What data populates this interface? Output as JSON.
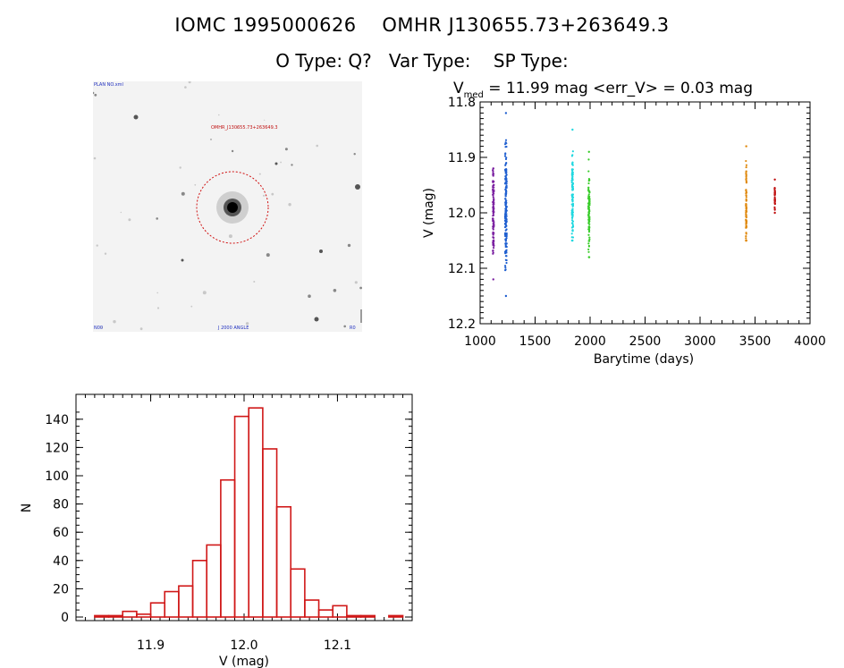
{
  "header": {
    "title": "IOMC 1995000626    OMHR J130655.73+263649.3",
    "subtitle": "O Type: Q?   Var Type:    SP Type:"
  },
  "image_panel": {
    "object_label": "OMHR_J130655.73+263649.3",
    "top_left_label": "PLAN NO.xml",
    "bottom_center_label": "J 2000 ANGLE",
    "bottom_left_label": "N00",
    "bottom_right_label": "R0"
  },
  "lightcurve": {
    "title_prefix": "V",
    "title_subscript": "med",
    "title_rest": " = 11.99 mag <err_V> = 0.03 mag",
    "xlabel": "Barytime (days)",
    "ylabel": "V (mag)"
  },
  "histogram": {
    "xlabel": "V (mag)",
    "ylabel": "N"
  },
  "chart_data": [
    {
      "type": "scatter",
      "title": "V_med = 11.99 mag <err_V> = 0.03 mag",
      "xlabel": "Barytime (days)",
      "ylabel": "V (mag)",
      "xlim": [
        1000,
        4000
      ],
      "ylim": [
        12.2,
        11.8
      ],
      "y_inverted": true,
      "x_ticks": [
        1000,
        1500,
        2000,
        2500,
        3000,
        3500,
        4000
      ],
      "y_ticks": [
        11.8,
        11.9,
        12.0,
        12.1,
        12.2
      ],
      "series": [
        {
          "color": "#7a1fa0",
          "x_center": 1120,
          "x_spread": 5,
          "y_min": 11.92,
          "y_max": 12.12,
          "y_median": 12.0
        },
        {
          "color": "#1f5fd0",
          "x_center": 1235,
          "x_spread": 8,
          "y_min": 11.82,
          "y_max": 12.15,
          "y_median": 11.99
        },
        {
          "color": "#20d8e0",
          "x_center": 1840,
          "x_spread": 6,
          "y_min": 11.85,
          "y_max": 12.05,
          "y_median": 11.97
        },
        {
          "color": "#39cc2a",
          "x_center": 1990,
          "x_spread": 6,
          "y_min": 11.89,
          "y_max": 12.08,
          "y_median": 12.0
        },
        {
          "color": "#e08a10",
          "x_center": 3420,
          "x_spread": 3,
          "y_min": 11.88,
          "y_max": 12.05,
          "y_median": 11.99
        },
        {
          "color": "#c01010",
          "x_center": 3680,
          "x_spread": 2,
          "y_min": 11.94,
          "y_max": 12.0,
          "y_median": 11.97
        }
      ]
    },
    {
      "type": "bar",
      "xlabel": "V (mag)",
      "ylabel": "N",
      "xlim": [
        11.82,
        12.18
      ],
      "ylim": [
        0,
        150
      ],
      "x_ticks": [
        11.9,
        12.0,
        12.1
      ],
      "y_ticks": [
        0,
        20,
        40,
        60,
        80,
        100,
        120,
        140
      ],
      "bin_width": 0.015,
      "bin_starts": [
        11.84,
        11.855,
        11.87,
        11.885,
        11.9,
        11.915,
        11.93,
        11.945,
        11.96,
        11.975,
        11.99,
        12.005,
        12.02,
        12.035,
        12.05,
        12.065,
        12.08,
        12.095,
        12.11,
        12.125,
        12.14,
        12.155
      ],
      "values": [
        1,
        1,
        4,
        2,
        10,
        18,
        22,
        40,
        51,
        97,
        142,
        148,
        119,
        78,
        34,
        12,
        5,
        8,
        1,
        1,
        0,
        1
      ]
    }
  ]
}
